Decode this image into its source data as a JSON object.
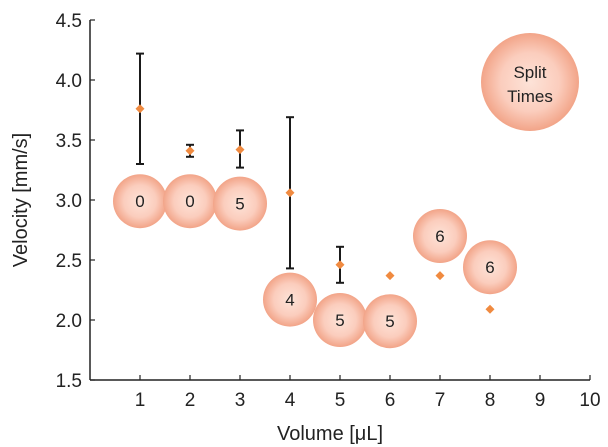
{
  "chart_data": {
    "type": "scatter",
    "xlabel": "Volume [μL]",
    "ylabel": "Velocity [mm/s]",
    "xlim": [
      0,
      10
    ],
    "ylim": [
      1.5,
      4.5
    ],
    "xticks": [
      "1",
      "2",
      "3",
      "4",
      "5",
      "6",
      "7",
      "8",
      "9",
      "10"
    ],
    "yticks": [
      "1.5",
      "2.0",
      "2.5",
      "3.0",
      "3.5",
      "4.0",
      "4.5"
    ],
    "grid": false,
    "legend_label": "Split Times",
    "legend_placement": "top-right",
    "velocity_points": [
      {
        "x": 1,
        "y": 3.76,
        "err_low": 3.3,
        "err_high": 4.22
      },
      {
        "x": 2,
        "y": 3.41,
        "err_low": 3.36,
        "err_high": 3.46
      },
      {
        "x": 3,
        "y": 3.42,
        "err_low": 3.27,
        "err_high": 3.58
      },
      {
        "x": 4,
        "y": 3.06,
        "err_low": 2.43,
        "err_high": 3.69
      },
      {
        "x": 5,
        "y": 2.46,
        "err_low": 2.31,
        "err_high": 2.61
      },
      {
        "x": 6,
        "y": 2.37
      },
      {
        "x": 7,
        "y": 2.37
      },
      {
        "x": 8,
        "y": 2.09
      }
    ],
    "split_times": [
      {
        "x": 1,
        "y": 2.99,
        "label": "0"
      },
      {
        "x": 2,
        "y": 2.99,
        "label": "0"
      },
      {
        "x": 3,
        "y": 2.97,
        "label": "5"
      },
      {
        "x": 4,
        "y": 2.17,
        "label": "4"
      },
      {
        "x": 5,
        "y": 2.0,
        "label": "5"
      },
      {
        "x": 6,
        "y": 1.99,
        "label": "5"
      },
      {
        "x": 7,
        "y": 2.7,
        "label": "6"
      },
      {
        "x": 8,
        "y": 2.44,
        "label": "6"
      }
    ],
    "colors": {
      "marker": "#f08a40",
      "bubble_center": "#fde3d8",
      "bubble_edge": "#f2a488",
      "errorbar": "#1a1a1a",
      "axis": "#222222"
    }
  }
}
